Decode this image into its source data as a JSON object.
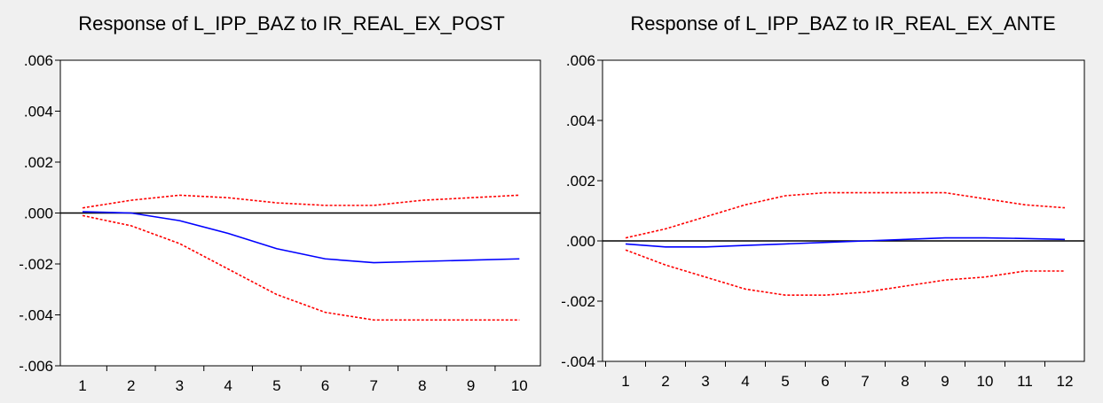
{
  "chart_data": [
    {
      "type": "line",
      "title": "Response of L_IPP_BAZ to IR_REAL_EX_POST",
      "x": [
        1,
        2,
        3,
        4,
        5,
        6,
        7,
        8,
        9,
        10
      ],
      "x_tick_labels": [
        "1",
        "2",
        "3",
        "4",
        "5",
        "6",
        "7",
        "8",
        "9",
        "10"
      ],
      "ylim": [
        -0.006,
        0.006
      ],
      "y_ticks": [
        0.006,
        0.004,
        0.002,
        0.0,
        -0.002,
        -0.004,
        -0.006
      ],
      "y_tick_labels": [
        ".006",
        ".004",
        ".002",
        ".000",
        "-.002",
        "-.004",
        "-.006"
      ],
      "zero_line": true,
      "grid": false,
      "series": [
        {
          "role": "response",
          "style": "solid",
          "color": "#0000ff",
          "values": [
            5e-05,
            0.0,
            -0.0003,
            -0.0008,
            -0.0014,
            -0.0018,
            -0.00195,
            -0.0019,
            -0.00185,
            -0.0018
          ]
        },
        {
          "role": "upper-band",
          "style": "dashed",
          "color": "#ff0000",
          "values": [
            0.0002,
            0.0005,
            0.0007,
            0.0006,
            0.0004,
            0.0003,
            0.0003,
            0.0005,
            0.0006,
            0.0007
          ]
        },
        {
          "role": "lower-band",
          "style": "dashed",
          "color": "#ff0000",
          "values": [
            -0.0001,
            -0.0005,
            -0.0012,
            -0.0022,
            -0.0032,
            -0.0039,
            -0.0042,
            -0.0042,
            -0.0042,
            -0.0042
          ]
        }
      ]
    },
    {
      "type": "line",
      "title": "Response of L_IPP_BAZ to IR_REAL_EX_ANTE",
      "x": [
        1,
        2,
        3,
        4,
        5,
        6,
        7,
        8,
        9,
        10,
        11,
        12
      ],
      "x_tick_labels": [
        "1",
        "2",
        "3",
        "4",
        "5",
        "6",
        "7",
        "8",
        "9",
        "10",
        "11",
        "12"
      ],
      "ylim": [
        -0.004,
        0.006
      ],
      "y_ticks": [
        0.006,
        0.004,
        0.002,
        0.0,
        -0.002,
        -0.004
      ],
      "y_tick_labels": [
        ".006",
        ".004",
        ".002",
        ".000",
        "-.002",
        "-.004"
      ],
      "zero_line": true,
      "grid": false,
      "series": [
        {
          "role": "response",
          "style": "solid",
          "color": "#0000ff",
          "values": [
            -0.0001,
            -0.0002,
            -0.0002,
            -0.00015,
            -0.0001,
            -5e-05,
            0.0,
            5e-05,
            0.0001,
            0.0001,
            8e-05,
            5e-05
          ]
        },
        {
          "role": "upper-band",
          "style": "dashed",
          "color": "#ff0000",
          "values": [
            0.0001,
            0.0004,
            0.0008,
            0.0012,
            0.0015,
            0.0016,
            0.0016,
            0.0016,
            0.0016,
            0.0014,
            0.0012,
            0.0011
          ]
        },
        {
          "role": "lower-band",
          "style": "dashed",
          "color": "#ff0000",
          "values": [
            -0.0003,
            -0.0008,
            -0.0012,
            -0.0016,
            -0.0018,
            -0.0018,
            -0.0017,
            -0.0015,
            -0.0013,
            -0.0012,
            -0.001,
            -0.001
          ]
        }
      ]
    }
  ]
}
